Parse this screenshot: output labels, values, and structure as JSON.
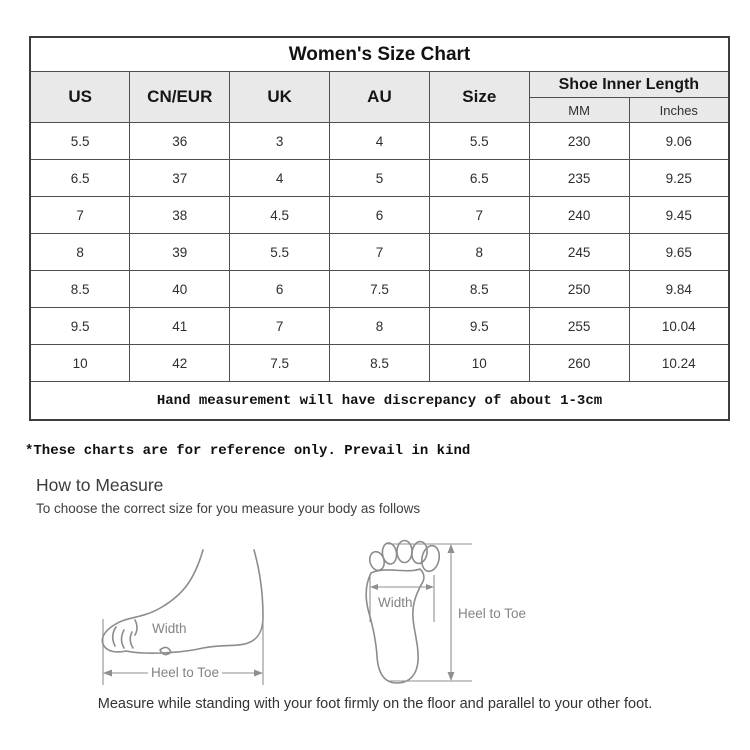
{
  "size_chart": {
    "title": "Women's Size Chart",
    "columns": [
      "US",
      "CN/EUR",
      "UK",
      "AU",
      "Size"
    ],
    "inner_length_header": "Shoe Inner Length",
    "inner_length_sub": [
      "MM",
      "Inches"
    ],
    "rows": [
      [
        "5.5",
        "36",
        "3",
        "4",
        "5.5",
        "230",
        "9.06"
      ],
      [
        "6.5",
        "37",
        "4",
        "5",
        "6.5",
        "235",
        "9.25"
      ],
      [
        "7",
        "38",
        "4.5",
        "6",
        "7",
        "240",
        "9.45"
      ],
      [
        "8",
        "39",
        "5.5",
        "7",
        "8",
        "245",
        "9.65"
      ],
      [
        "8.5",
        "40",
        "6",
        "7.5",
        "8.5",
        "250",
        "9.84"
      ],
      [
        "9.5",
        "41",
        "7",
        "8",
        "9.5",
        "255",
        "10.04"
      ],
      [
        "10",
        "42",
        "7.5",
        "8.5",
        "10",
        "260",
        "10.24"
      ]
    ],
    "note": "Hand measurement will have discrepancy of about 1-3cm"
  },
  "disclaimer": "*These charts are for reference only. Prevail in kind",
  "measure_section": {
    "heading": "How to Measure",
    "subheading": "To choose the correct size for you measure your body as follows",
    "side_diagram": {
      "width_label": "Width",
      "length_label": "Heel to Toe"
    },
    "sole_diagram": {
      "width_label": "Width",
      "length_label": "Heel to Toe"
    },
    "caption": "Measure while standing with your foot firmly on the floor and parallel to your other foot."
  },
  "colors": {
    "table_border": "#4f4f4f",
    "header_background": "#e9e9e9",
    "body_text": "#2e2e2e",
    "diagram_line": "#8c8c8c",
    "diagram_text": "#848484"
  }
}
